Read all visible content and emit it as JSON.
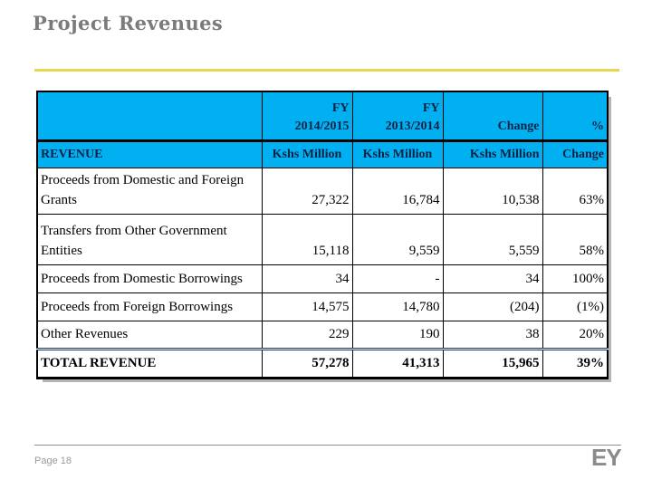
{
  "title": "Project Revenues",
  "footer": {
    "page_label": "Page 18",
    "logo_text": "EY"
  },
  "colors": {
    "header_bg": "#00b0f0",
    "header_text": "#0c2244",
    "accent_rule_yellow": "#e9d54f",
    "title_gray": "#7b7b7b",
    "total_border_navy": "#17365d"
  },
  "chart_data": {
    "type": "table",
    "title": "Project Revenues",
    "header_row_1": [
      "",
      "FY 2014/2015",
      "FY 2013/2014",
      "Change",
      "%"
    ],
    "header_row_2": [
      "REVENUE",
      "Kshs Million",
      "Kshs Million",
      "Kshs Million",
      "Change"
    ],
    "rows": [
      [
        "Proceeds from Domestic and Foreign Grants",
        "27,322",
        "16,784",
        "10,538",
        "63%"
      ],
      [
        "Transfers from Other Government Entities",
        "15,118",
        "9,559",
        "5,559",
        "58%"
      ],
      [
        "Proceeds from Domestic Borrowings",
        "34",
        "-",
        "34",
        "100%"
      ],
      [
        "Proceeds from Foreign Borrowings",
        "14,575",
        "14,780",
        "(204)",
        "(1%)"
      ],
      [
        "Other Revenues",
        "229",
        "190",
        "38",
        "20%"
      ]
    ],
    "total_row": [
      "TOTAL REVENUE",
      "57,278",
      "41,313",
      "15,965",
      "39%"
    ]
  }
}
